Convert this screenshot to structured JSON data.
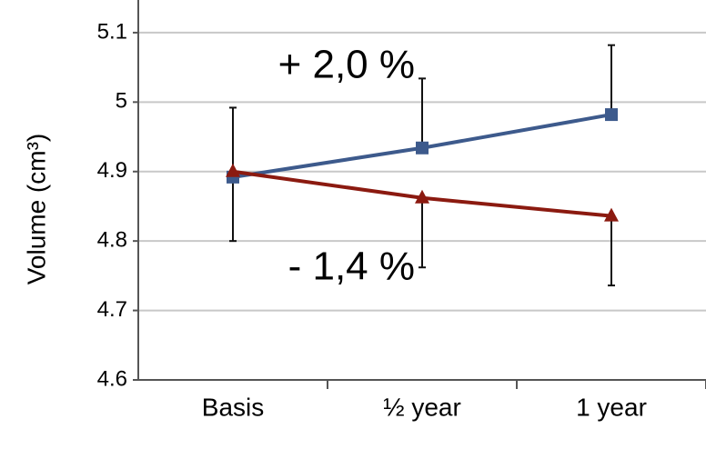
{
  "chart_data": {
    "type": "line",
    "y_label": "Volume   (cm³)",
    "categories": [
      "Basis",
      "½ year",
      "1 year"
    ],
    "series": [
      {
        "color": "#3d5a8c",
        "marker": "square",
        "values": [
          4.892,
          4.934,
          4.982
        ],
        "errors": [
          0.1,
          0.1,
          0.1
        ],
        "error_direction": "up"
      },
      {
        "color": "#8b1a10",
        "marker": "triangle",
        "values": [
          4.9,
          4.862,
          4.836
        ],
        "errors": [
          0.1,
          0.1,
          0.1
        ],
        "error_direction": "down"
      }
    ],
    "annotations": [
      {
        "text": "+ 2,0 %",
        "color": "#1f8a1f",
        "x": 2,
        "y": 5.05
      },
      {
        "text": "- 1,4 %",
        "color": "#ee1c1c",
        "x": 2,
        "y": 4.76
      }
    ],
    "ylim": [
      4.6,
      5.147
    ],
    "yticks": [
      4.6,
      4.7,
      4.8,
      4.9,
      5,
      5.1
    ],
    "grid": true
  }
}
